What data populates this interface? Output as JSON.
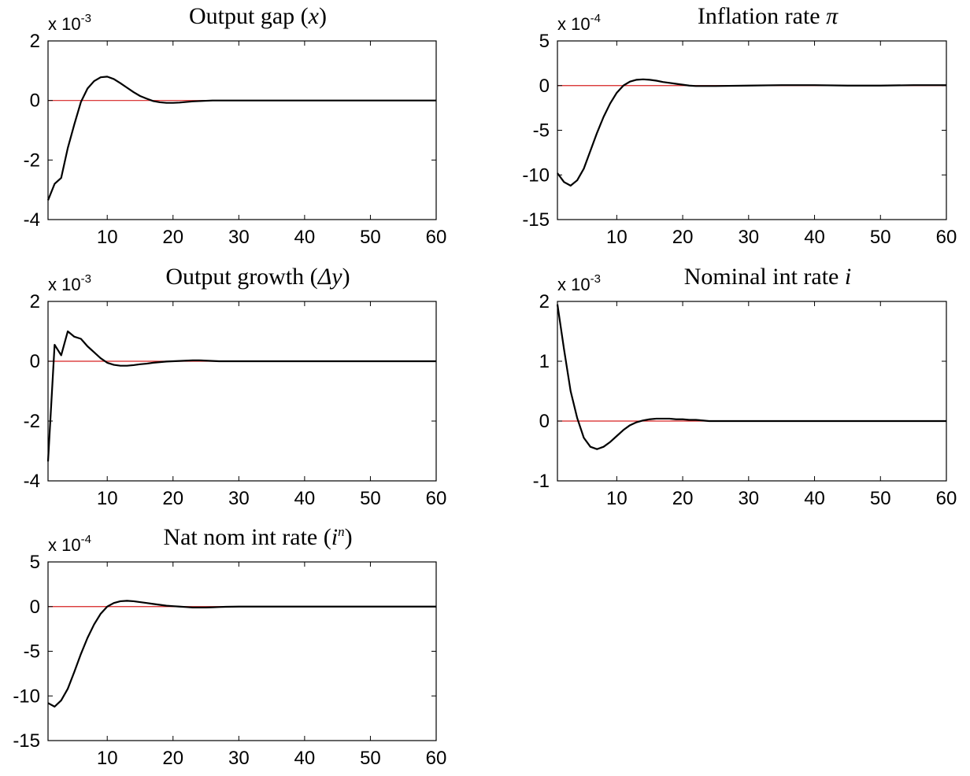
{
  "figure": {
    "layout": "3x2 grid of impulse-response panels"
  },
  "style": {
    "response_color": "#000000",
    "zero_line_color": "#d62020",
    "axes_color": "#000000"
  },
  "chart_data": [
    {
      "type": "line",
      "title_text": "Output gap (",
      "title_symbol": "x",
      "title_close": ")",
      "multiplier_base": "x 10",
      "multiplier_exp": "-3",
      "xlim": [
        1,
        60
      ],
      "ylim": [
        -4,
        2
      ],
      "xticks": [
        10,
        20,
        30,
        40,
        50,
        60
      ],
      "xtick_labels": [
        "10",
        "20",
        "30",
        "40",
        "50",
        "60"
      ],
      "yticks": [
        -4,
        -2,
        0,
        2
      ],
      "ytick_labels": [
        "-4",
        "-2",
        "0",
        "2"
      ],
      "zero_line": 0,
      "series": [
        {
          "x": [
            1,
            2,
            3,
            4,
            5,
            6,
            7,
            8,
            9,
            10,
            11,
            12,
            13,
            14,
            15,
            16,
            17,
            18,
            19,
            20,
            21,
            22,
            23,
            24,
            25,
            26,
            27,
            28,
            29,
            30,
            35,
            40,
            45,
            50,
            55,
            60
          ],
          "y": [
            -3.35,
            -2.8,
            -2.6,
            -1.6,
            -0.8,
            -0.05,
            0.4,
            0.65,
            0.78,
            0.8,
            0.72,
            0.58,
            0.43,
            0.28,
            0.15,
            0.06,
            -0.02,
            -0.06,
            -0.08,
            -0.08,
            -0.07,
            -0.05,
            -0.03,
            -0.02,
            -0.01,
            0,
            0,
            0,
            0,
            0,
            0,
            0,
            0,
            0,
            0,
            0
          ]
        }
      ]
    },
    {
      "type": "line",
      "title_text": "Inflation rate ",
      "title_symbol": "π",
      "title_close": "",
      "multiplier_base": "x 10",
      "multiplier_exp": "-4",
      "xlim": [
        1,
        60
      ],
      "ylim": [
        -15,
        5
      ],
      "xticks": [
        10,
        20,
        30,
        40,
        50,
        60
      ],
      "xtick_labels": [
        "10",
        "20",
        "30",
        "40",
        "50",
        "60"
      ],
      "yticks": [
        -15,
        -10,
        -5,
        0,
        5
      ],
      "ytick_labels": [
        "-15",
        "-10",
        "-5",
        "0",
        "5"
      ],
      "zero_line": 0,
      "series": [
        {
          "x": [
            1,
            2,
            3,
            4,
            5,
            6,
            7,
            8,
            9,
            10,
            11,
            12,
            13,
            14,
            15,
            16,
            17,
            18,
            19,
            20,
            21,
            22,
            25,
            30,
            35,
            40,
            45,
            50,
            55,
            60
          ],
          "y": [
            -9.8,
            -10.8,
            -11.2,
            -10.6,
            -9.3,
            -7.3,
            -5.3,
            -3.5,
            -2.0,
            -0.8,
            0.0,
            0.45,
            0.65,
            0.7,
            0.65,
            0.55,
            0.4,
            0.3,
            0.2,
            0.1,
            0.0,
            -0.05,
            -0.05,
            0,
            0.05,
            0.05,
            0,
            0,
            0.05,
            0.05
          ]
        }
      ]
    },
    {
      "type": "line",
      "title_text": "Output growth (",
      "title_symbol": "Δy",
      "title_close": ")",
      "multiplier_base": "x 10",
      "multiplier_exp": "-3",
      "xlim": [
        1,
        60
      ],
      "ylim": [
        -4,
        2
      ],
      "xticks": [
        10,
        20,
        30,
        40,
        50,
        60
      ],
      "xtick_labels": [
        "10",
        "20",
        "30",
        "40",
        "50",
        "60"
      ],
      "yticks": [
        -4,
        -2,
        0,
        2
      ],
      "ytick_labels": [
        "-4",
        "-2",
        "0",
        "2"
      ],
      "zero_line": 0,
      "series": [
        {
          "x": [
            1,
            2,
            3,
            4,
            5,
            6,
            7,
            8,
            9,
            10,
            11,
            12,
            13,
            14,
            15,
            16,
            17,
            18,
            19,
            20,
            21,
            22,
            23,
            24,
            25,
            26,
            27,
            28,
            30,
            35,
            40,
            45,
            50,
            55,
            60
          ],
          "y": [
            -3.35,
            0.55,
            0.2,
            1.0,
            0.82,
            0.75,
            0.5,
            0.3,
            0.1,
            -0.05,
            -0.12,
            -0.15,
            -0.15,
            -0.13,
            -0.1,
            -0.08,
            -0.05,
            -0.03,
            -0.01,
            0.0,
            0.01,
            0.02,
            0.03,
            0.03,
            0.02,
            0.01,
            0,
            0,
            0,
            0,
            0,
            0,
            0,
            0,
            0
          ]
        }
      ]
    },
    {
      "type": "line",
      "title_text": "Nominal int rate  ",
      "title_symbol": "i",
      "title_close": "",
      "multiplier_base": "x 10",
      "multiplier_exp": "-3",
      "xlim": [
        1,
        60
      ],
      "ylim": [
        -1,
        2
      ],
      "xticks": [
        10,
        20,
        30,
        40,
        50,
        60
      ],
      "xtick_labels": [
        "10",
        "20",
        "30",
        "40",
        "50",
        "60"
      ],
      "yticks": [
        -1,
        0,
        1,
        2
      ],
      "ytick_labels": [
        "-1",
        "0",
        "1",
        "2"
      ],
      "zero_line": 0,
      "series": [
        {
          "x": [
            1,
            2,
            3,
            4,
            5,
            6,
            7,
            8,
            9,
            10,
            11,
            12,
            13,
            14,
            15,
            16,
            17,
            18,
            19,
            20,
            21,
            22,
            23,
            24,
            25,
            30,
            35,
            40,
            45,
            50,
            55,
            60
          ],
          "y": [
            1.95,
            1.2,
            0.5,
            0.05,
            -0.28,
            -0.43,
            -0.47,
            -0.43,
            -0.35,
            -0.25,
            -0.15,
            -0.07,
            -0.02,
            0.01,
            0.03,
            0.04,
            0.04,
            0.04,
            0.03,
            0.03,
            0.02,
            0.02,
            0.01,
            0.0,
            0,
            0,
            0,
            0,
            0,
            0,
            0,
            0
          ]
        }
      ]
    },
    {
      "type": "line",
      "title_text": "Nat nom int rate (",
      "title_symbol": "i",
      "title_sup": "n",
      "title_close": ")",
      "multiplier_base": "x 10",
      "multiplier_exp": "-4",
      "xlim": [
        1,
        60
      ],
      "ylim": [
        -15,
        5
      ],
      "xticks": [
        10,
        20,
        30,
        40,
        50,
        60
      ],
      "xtick_labels": [
        "10",
        "20",
        "30",
        "40",
        "50",
        "60"
      ],
      "yticks": [
        -15,
        -10,
        -5,
        0,
        5
      ],
      "ytick_labels": [
        "-15",
        "-10",
        "-5",
        "0",
        "5"
      ],
      "zero_line": 0,
      "series": [
        {
          "x": [
            1,
            2,
            3,
            4,
            5,
            6,
            7,
            8,
            9,
            10,
            11,
            12,
            13,
            14,
            15,
            16,
            17,
            18,
            19,
            20,
            21,
            22,
            23,
            24,
            25,
            26,
            27,
            28,
            30,
            35,
            40,
            45,
            50,
            55,
            60
          ],
          "y": [
            -10.8,
            -11.2,
            -10.5,
            -9.2,
            -7.3,
            -5.3,
            -3.5,
            -2.0,
            -0.8,
            0.0,
            0.4,
            0.6,
            0.65,
            0.6,
            0.5,
            0.4,
            0.3,
            0.2,
            0.1,
            0.05,
            0.0,
            -0.05,
            -0.1,
            -0.1,
            -0.1,
            -0.08,
            -0.05,
            -0.02,
            0,
            0,
            0,
            0,
            0,
            0,
            0
          ]
        }
      ]
    }
  ]
}
